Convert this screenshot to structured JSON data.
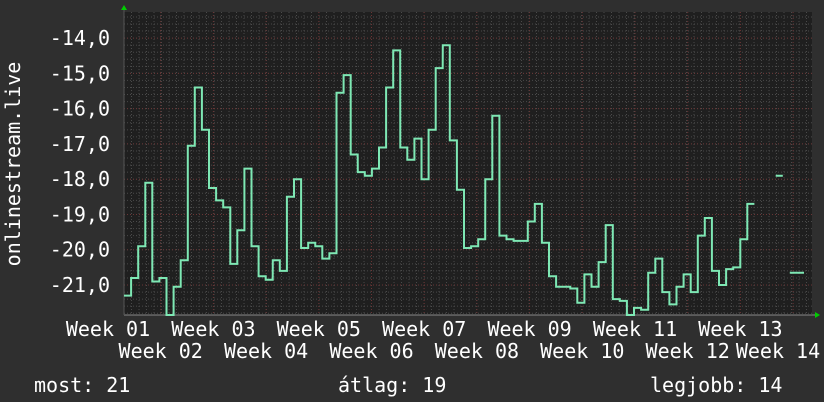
{
  "chart_data": {
    "type": "line",
    "step": true,
    "ylabel": "onlinestream.live",
    "ylim": [
      -21.85,
      -13.26
    ],
    "yticks": [
      "-14,0",
      "-15,0",
      "-16,0",
      "-17,0",
      "-18,0",
      "-19,0",
      "-20,0",
      "-21,0"
    ],
    "ytick_values": [
      -14,
      -15,
      -16,
      -17,
      -18,
      -19,
      -20,
      -21
    ],
    "xticks": [
      "Week 01",
      "Week 02",
      "Week 03",
      "Week 04",
      "Week 05",
      "Week 06",
      "Week 07",
      "Week 08",
      "Week 09",
      "Week 10",
      "Week 11",
      "Week 12",
      "Week 13",
      "Week 14"
    ],
    "grid": true,
    "series": [
      {
        "color": "#7ee8b4",
        "values": [
          -21.3,
          -20.8,
          -19.9,
          -18.1,
          -20.9,
          -20.8,
          -21.85,
          -21.05,
          -20.3,
          -17.05,
          -15.4,
          -16.6,
          -18.25,
          -18.6,
          -18.8,
          -20.4,
          -19.45,
          -17.7,
          -19.9,
          -20.75,
          -20.85,
          -20.3,
          -20.6,
          -18.5,
          -18.0,
          -19.95,
          -19.8,
          -19.9,
          -20.25,
          -20.1,
          -15.55,
          -15.05,
          -17.3,
          -17.8,
          -17.9,
          -17.7,
          -17.1,
          -15.4,
          -14.35,
          -17.1,
          -17.45,
          -16.85,
          -18.0,
          -16.6,
          -14.85,
          -14.2,
          -16.9,
          -18.3,
          -19.95,
          -19.9,
          -19.7,
          -18.0,
          -16.2,
          -19.6,
          -19.7,
          -19.75,
          -19.75,
          -19.2,
          -18.7,
          -19.8,
          -20.75,
          -21.05,
          -21.05,
          -21.1,
          -21.5,
          -20.7,
          -21.05,
          -20.35,
          -19.3,
          -21.4,
          -21.45,
          -21.9,
          -21.65,
          -21.7,
          -20.65,
          -20.25,
          -21.2,
          -21.55,
          -21.05,
          -20.7,
          -21.2,
          -19.6,
          -19.1,
          -20.6,
          -21.0,
          -20.55,
          -20.5,
          -19.7,
          -18.7,
          null,
          null,
          null,
          -17.9,
          null,
          -20.65,
          -20.65
        ]
      }
    ],
    "colors": {
      "background": "#2f2f2f",
      "plot": "#1f1f1f",
      "grid_minor": "#4a4a4a",
      "grid_major": "#6a3535",
      "axis_arrow": "#00cc00"
    }
  },
  "footer": {
    "current": "most: 21",
    "average": "átlag: 19",
    "best": "legjobb: 14"
  }
}
